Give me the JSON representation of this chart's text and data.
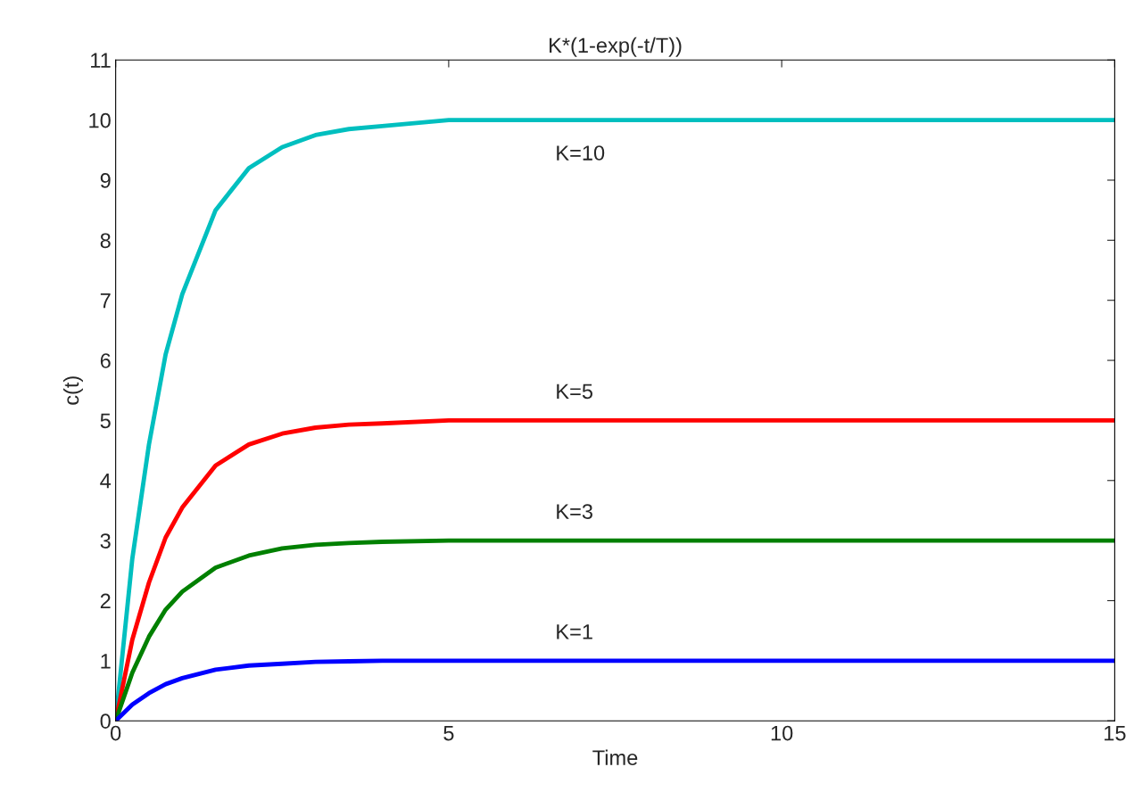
{
  "chart_data": {
    "type": "line",
    "title": "K*(1-exp(-t/T))",
    "xlabel": "Time",
    "ylabel": "c(t)",
    "x": [
      0,
      0.25,
      0.5,
      0.75,
      1,
      1.5,
      2,
      2.5,
      3,
      3.5,
      4,
      5,
      6,
      8,
      10,
      12,
      15
    ],
    "series": [
      {
        "name": "K=10",
        "color": "#00bfbf",
        "values": [
          0,
          2.7,
          4.6,
          6.1,
          7.1,
          8.5,
          9.2,
          9.55,
          9.75,
          9.85,
          9.9,
          10,
          10,
          10,
          10,
          10,
          10
        ]
      },
      {
        "name": "K=5",
        "color": "#ff0000",
        "values": [
          0,
          1.35,
          2.3,
          3.05,
          3.55,
          4.25,
          4.6,
          4.78,
          4.88,
          4.93,
          4.95,
          5,
          5,
          5,
          5,
          5,
          5
        ]
      },
      {
        "name": "K=3",
        "color": "#008000",
        "values": [
          0,
          0.8,
          1.4,
          1.85,
          2.15,
          2.55,
          2.75,
          2.87,
          2.93,
          2.96,
          2.98,
          3,
          3,
          3,
          3,
          3,
          3
        ]
      },
      {
        "name": "K=1",
        "color": "#0000ff",
        "values": [
          0,
          0.27,
          0.46,
          0.61,
          0.71,
          0.85,
          0.92,
          0.95,
          0.98,
          0.99,
          1,
          1,
          1,
          1,
          1,
          1,
          1
        ]
      }
    ],
    "xlim": [
      0,
      15
    ],
    "xticks": [
      0,
      5,
      10,
      15
    ],
    "ylim": [
      0,
      11
    ],
    "yticks": [
      0,
      1,
      2,
      3,
      4,
      5,
      6,
      7,
      8,
      9,
      10,
      11
    ],
    "grid": false,
    "legend": false
  }
}
